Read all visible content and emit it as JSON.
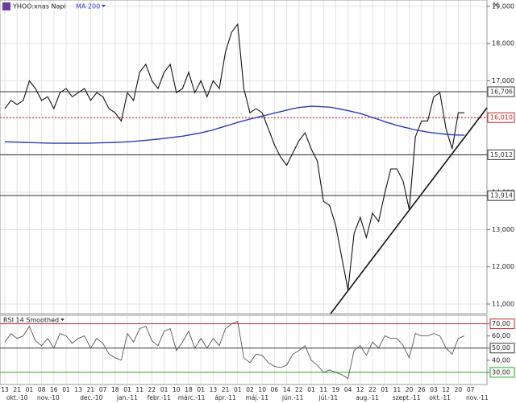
{
  "chart_data": {
    "type": "line",
    "categories": [
      "13",
      null,
      "21",
      null,
      "01",
      null,
      "08",
      null,
      "16",
      null,
      "01",
      null,
      "13",
      null,
      "21",
      null,
      "07",
      null,
      "18",
      null,
      "01",
      null,
      "11",
      null,
      "22",
      null,
      "01",
      null,
      "10",
      null,
      "18",
      null,
      "01",
      null,
      "13",
      null,
      "21",
      null,
      "01",
      null,
      "02",
      null,
      "10",
      null,
      "06",
      null,
      "14",
      null,
      "22",
      null,
      "01",
      null,
      "11",
      null,
      "19",
      null,
      "04",
      null,
      "12",
      null,
      "22",
      null,
      "01",
      null,
      "11",
      null,
      "20",
      null,
      "26",
      null,
      "03",
      null,
      "12",
      null,
      "20",
      null,
      "07",
      null
    ],
    "month_labels": [
      "okt.-10",
      null,
      null,
      null,
      null,
      "nov.-10",
      null,
      null,
      null,
      null,
      null,
      null,
      "dec.-10",
      null,
      null,
      null,
      null,
      null,
      "jan.-11",
      null,
      null,
      null,
      null,
      "febr.-11",
      null,
      null,
      null,
      null,
      "márc.-11",
      null,
      null,
      null,
      null,
      null,
      "ápr.-11",
      null,
      null,
      null,
      null,
      "máj.-11",
      null,
      null,
      null,
      null,
      null,
      "jún.-11",
      null,
      null,
      null,
      null,
      null,
      "júl.-11",
      null,
      null,
      null,
      null,
      null,
      "aug.-11",
      null,
      null,
      null,
      null,
      null,
      "szept.-11",
      null,
      null,
      null,
      null,
      null,
      "okt.-11",
      null,
      null,
      null,
      null,
      null,
      "nov.-11",
      null,
      null
    ],
    "series": [
      {
        "name": "YHOO:xnas Napi",
        "color": "#111111",
        "values": [
          16250,
          16470,
          16360,
          16470,
          17000,
          16790,
          16470,
          16570,
          16250,
          16680,
          16790,
          16570,
          16680,
          16790,
          16470,
          16680,
          16570,
          16250,
          16140,
          15920,
          16680,
          16470,
          17230,
          17440,
          17000,
          16790,
          17230,
          17440,
          16680,
          16790,
          17230,
          16680,
          17000,
          16570,
          17000,
          16790,
          17770,
          18300,
          18520,
          16790,
          16140,
          16250,
          16140,
          15710,
          15280,
          14950,
          14730,
          15060,
          15390,
          15600,
          15170,
          14840,
          13760,
          13650,
          13110,
          12240,
          11380,
          12900,
          13330,
          12790,
          13440,
          13220,
          13980,
          14630,
          14630,
          14300,
          13540,
          15490,
          15920,
          15920,
          16570,
          16680,
          15710,
          15170,
          16140,
          16140,
          null,
          null
        ]
      },
      {
        "name": "MA 200",
        "color": "#2b3bc4",
        "values": [
          15360,
          15355,
          15350,
          15345,
          15340,
          15335,
          15330,
          15325,
          15320,
          15320,
          15320,
          15320,
          15320,
          15320,
          15325,
          15330,
          15335,
          15340,
          15345,
          15350,
          15360,
          15370,
          15385,
          15400,
          15415,
          15430,
          15450,
          15470,
          15490,
          15510,
          15540,
          15570,
          15600,
          15640,
          15680,
          15730,
          15780,
          15830,
          15880,
          15925,
          15970,
          16010,
          16050,
          16090,
          16130,
          16170,
          16210,
          16250,
          16280,
          16300,
          16315,
          16310,
          16300,
          16290,
          16260,
          16230,
          16200,
          16160,
          16120,
          16070,
          16010,
          15960,
          15900,
          15850,
          15800,
          15760,
          15720,
          15680,
          15650,
          15620,
          15600,
          15580,
          15560,
          15550,
          15540,
          15540,
          null,
          null
        ]
      }
    ],
    "ylim": [
      10740,
      19170
    ],
    "yticks": [
      {
        "value": 19000,
        "label": "19,000"
      },
      {
        "value": 18000,
        "label": "18,000"
      },
      {
        "value": 17000,
        "label": "17,000"
      },
      {
        "value": 16000,
        "label": "16,000"
      },
      {
        "value": 15000,
        "label": "15,000"
      },
      {
        "value": 14000,
        "label": "14,000"
      },
      {
        "value": 13000,
        "label": "13,000"
      },
      {
        "value": 12000,
        "label": "12,000"
      },
      {
        "value": 11000,
        "label": "11,000"
      }
    ],
    "grid": true,
    "levels": [
      {
        "value": 16706,
        "label": "16,706",
        "color": "#333333",
        "style": "solid"
      },
      {
        "value": 16010,
        "label": "16,010",
        "color": "#cc2222",
        "style": "dotted"
      },
      {
        "value": 15012,
        "label": "15,012",
        "color": "#333333",
        "style": "solid"
      },
      {
        "value": 13914,
        "label": "13,914",
        "color": "#333333",
        "style": "solid"
      }
    ],
    "rsi": {
      "title": "RSI 14 Smoothed",
      "ylim": [
        20,
        77
      ],
      "yticks": [
        {
          "value": 70,
          "label": "70,00"
        },
        {
          "value": 60,
          "label": "60,00"
        },
        {
          "value": 50,
          "label": "50,00"
        },
        {
          "value": 40,
          "label": "40,00"
        },
        {
          "value": 30,
          "label": "30,00"
        }
      ],
      "levels": [
        {
          "value": 70,
          "color": "#cc2222"
        },
        {
          "value": 50,
          "color": "#333333"
        },
        {
          "value": 30,
          "color": "#22aa22"
        }
      ],
      "color": "#555555",
      "values": [
        55,
        62,
        58,
        60,
        68,
        56,
        52,
        58,
        50,
        62,
        60,
        54,
        58,
        60,
        50,
        58,
        54,
        45,
        42,
        40,
        62,
        55,
        66,
        68,
        56,
        52,
        64,
        66,
        48,
        55,
        64,
        50,
        58,
        50,
        58,
        52,
        66,
        70,
        72,
        42,
        38,
        45,
        44,
        38,
        35,
        34,
        36,
        45,
        48,
        52,
        40,
        36,
        30,
        32,
        30,
        28,
        25,
        48,
        52,
        44,
        55,
        50,
        60,
        58,
        58,
        52,
        42,
        62,
        60,
        60,
        62,
        60,
        50,
        45,
        58,
        60,
        null,
        null
      ]
    }
  }
}
